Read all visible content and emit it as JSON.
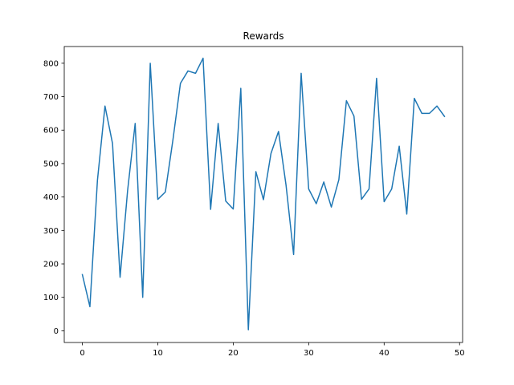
{
  "chart_data": {
    "type": "line",
    "title": "Rewards",
    "xlabel": "",
    "ylabel": "",
    "xlim": [
      -2.4,
      50.4
    ],
    "ylim": [
      -35,
      850
    ],
    "xticks": [
      0,
      10,
      20,
      30,
      40,
      50
    ],
    "yticks": [
      0,
      100,
      200,
      300,
      400,
      500,
      600,
      700,
      800
    ],
    "grid": false,
    "legend": "none",
    "series": [
      {
        "color": "#1f77b4",
        "x": [
          0,
          1,
          2,
          3,
          4,
          5,
          6,
          7,
          8,
          9,
          10,
          11,
          12,
          13,
          14,
          15,
          16,
          17,
          18,
          19,
          20,
          21,
          22,
          23,
          24,
          25,
          26,
          27,
          28,
          29,
          30,
          31,
          32,
          33,
          34,
          35,
          36,
          37,
          38,
          39,
          40,
          41,
          42,
          43,
          44,
          45,
          46,
          47,
          48
        ],
        "y": [
          168,
          72,
          450,
          672,
          560,
          160,
          420,
          620,
          100,
          800,
          393,
          415,
          570,
          740,
          777,
          770,
          815,
          363,
          620,
          388,
          364,
          725,
          3,
          476,
          392,
          530,
          596,
          435,
          228,
          770,
          424,
          380,
          445,
          370,
          452,
          688,
          642,
          393,
          424,
          755,
          386,
          424,
          552,
          349,
          695,
          650,
          650,
          672,
          641
        ]
      }
    ]
  }
}
